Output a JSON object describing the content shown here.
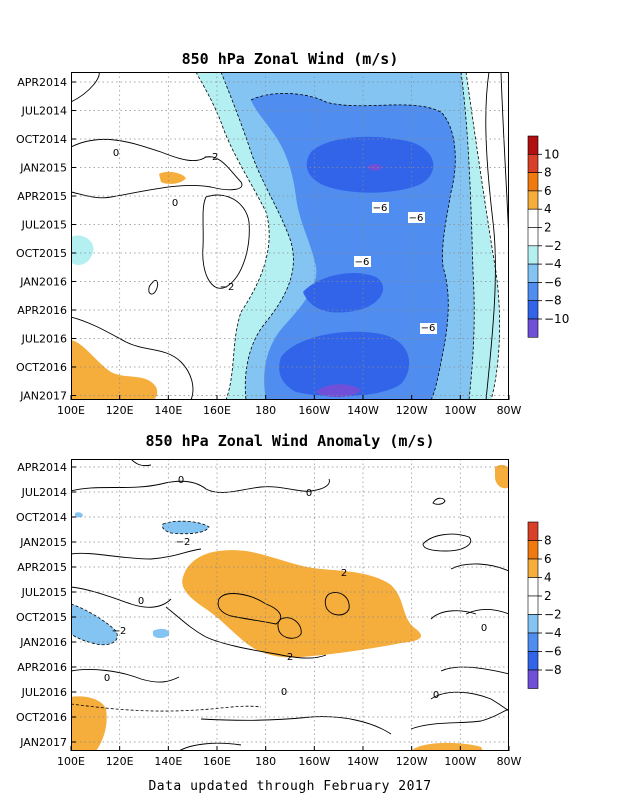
{
  "footer": "Data updated through February 2017",
  "chart_data": [
    {
      "type": "heatmap",
      "title": "850 hPa Zonal Wind (m/s)",
      "x_ticks": [
        "100E",
        "120E",
        "140E",
        "160E",
        "180",
        "160W",
        "140W",
        "120W",
        "100W",
        "80W"
      ],
      "y_ticks": [
        "APR2014",
        "JUL2014",
        "OCT2014",
        "JAN2015",
        "APR2015",
        "JUL2015",
        "OCT2015",
        "JAN2016",
        "APR2016",
        "JUL2016",
        "OCT2016",
        "JAN2017"
      ],
      "colorbar": {
        "labels": [
          "10",
          "8",
          "6",
          "4",
          "2",
          "−2",
          "−4",
          "−6",
          "−8",
          "−10"
        ],
        "colors": [
          "#b01010",
          "#d8402a",
          "#f07a10",
          "#f5ad3c",
          "#ffffff",
          "#b4eff2",
          "#84c4f2",
          "#4f8ef0",
          "#3264ea",
          "#7050d8"
        ]
      },
      "contour_labels": [
        "0",
        "0",
        "−2",
        "−2",
        "−6",
        "−6",
        "−6",
        "−6"
      ],
      "grid": true
    },
    {
      "type": "heatmap",
      "title": "850 hPa Zonal Wind Anomaly (m/s)",
      "x_ticks": [
        "100E",
        "120E",
        "140E",
        "160E",
        "180",
        "160W",
        "140W",
        "120W",
        "100W",
        "80W"
      ],
      "y_ticks": [
        "APR2014",
        "JUL2014",
        "OCT2014",
        "JAN2015",
        "APR2015",
        "JUL2015",
        "OCT2015",
        "JAN2016",
        "APR2016",
        "JUL2016",
        "OCT2016",
        "JAN2017"
      ],
      "colorbar": {
        "labels": [
          "8",
          "6",
          "4",
          "2",
          "−2",
          "−4",
          "−6",
          "−8"
        ],
        "colors": [
          "#d8402a",
          "#f07a10",
          "#f5ad3c",
          "#ffffff",
          "#84c4f2",
          "#4f8ef0",
          "#3264ea",
          "#7050d8"
        ]
      },
      "contour_labels": [
        "0",
        "0",
        "0",
        "−2",
        "2",
        "2",
        "−2",
        "0",
        "0",
        "0",
        "0"
      ],
      "grid": true
    }
  ]
}
